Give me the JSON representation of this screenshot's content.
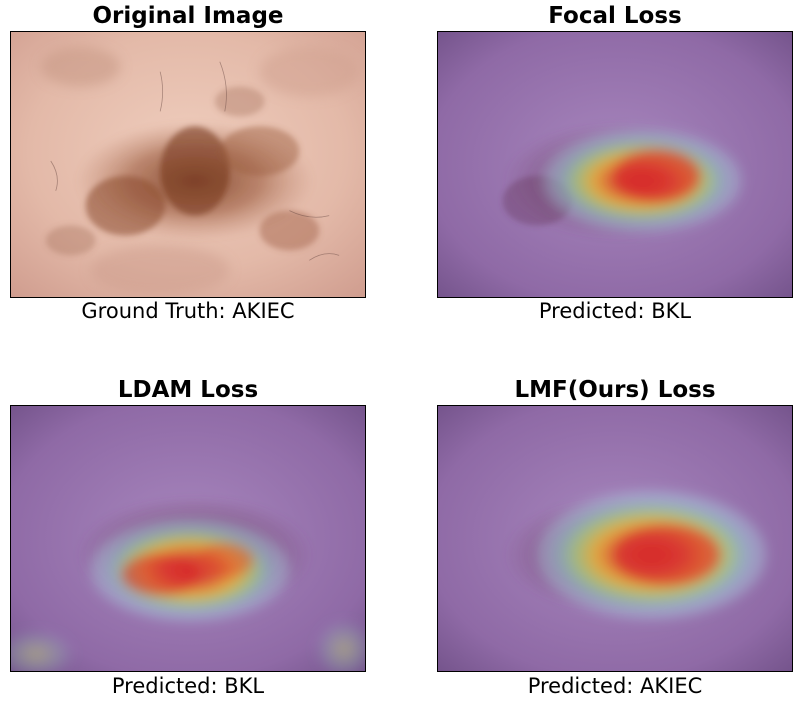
{
  "panels": [
    {
      "title": "Original Image",
      "caption": "Ground Truth: AKIEC"
    },
    {
      "title": "Focal Loss",
      "caption": "Predicted: BKL"
    },
    {
      "title": "LDAM Loss",
      "caption": "Predicted: BKL"
    },
    {
      "title": "LMF(Ours) Loss",
      "caption": "Predicted: AKIEC"
    }
  ],
  "colors": {
    "skin": "#e8c2b2",
    "lesion": "#8a4a2e",
    "overlay": "#9a7bb0",
    "heat_hot": "#e0302a",
    "heat_warm": "#f2c232",
    "heat_cool": "#8fd3b0"
  }
}
